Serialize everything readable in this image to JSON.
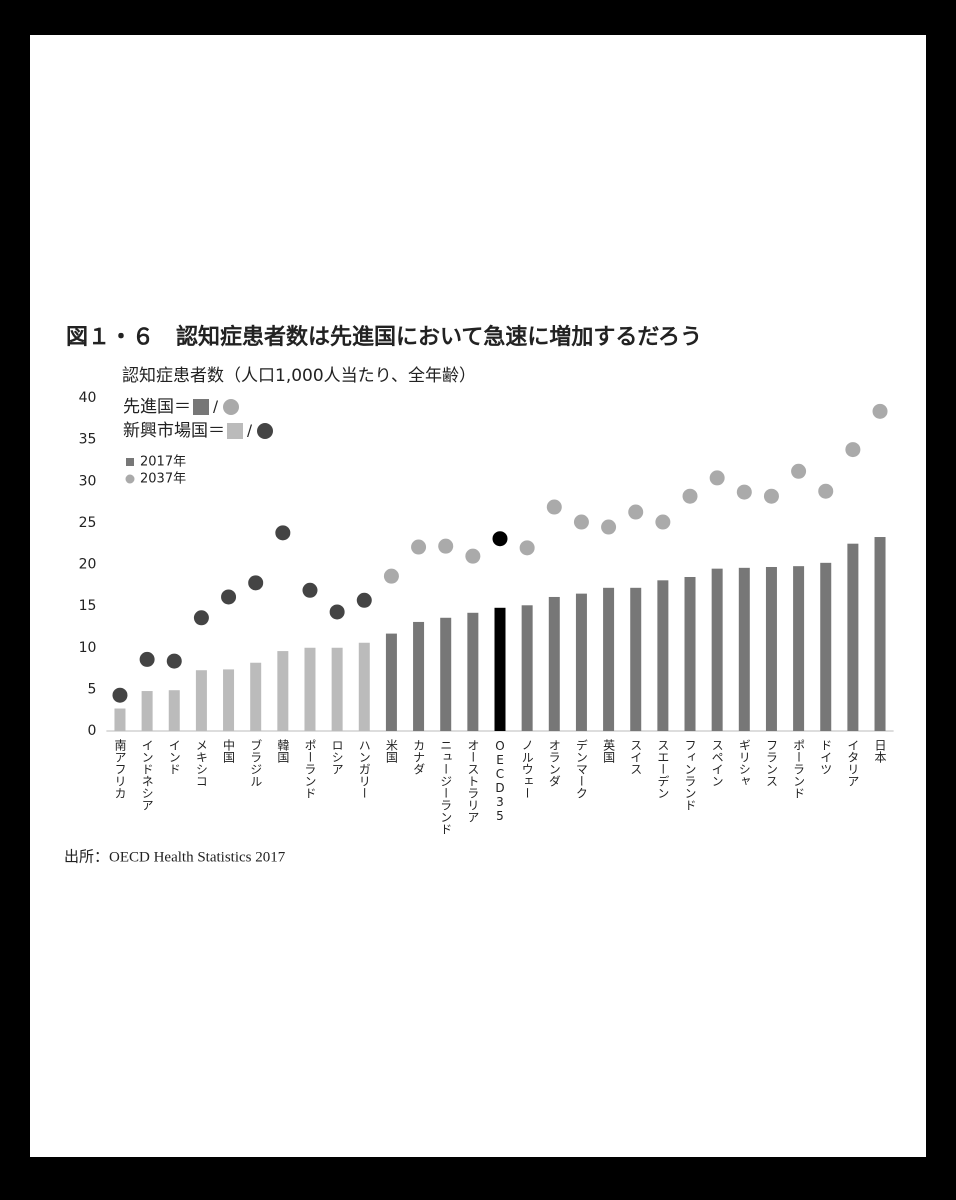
{
  "chart_data": {
    "type": "bar_dot",
    "title": "図１・６　認知症患者数は先進国において急速に増加するだろう",
    "y_label": "認知症患者数（人口1,000人当たり、全年齢）",
    "source": "出所：OECD Health Statistics 2017",
    "legend_groups": [
      {
        "label": "先進国＝",
        "separator": "/",
        "bar_color": "#777777",
        "dot_color": "#aaaaaa"
      },
      {
        "label": "新興市場国＝",
        "separator": "/",
        "bar_color": "#bbbbbb",
        "dot_color": "#444444"
      }
    ],
    "categories": [
      "南アフリカ",
      "インドネシア",
      "インド",
      "メキシコ",
      "中国",
      "ブラジル",
      "韓国",
      "ポーランド",
      "ロシア",
      "ハンガリー",
      "米国",
      "カナダ",
      "ニュージーランド",
      "オーストラリア",
      "OECD35",
      "ノルウェー",
      "オランダ",
      "デンマーク",
      "英国",
      "スイス",
      "スエーデン",
      "フィンランド",
      "スペイン",
      "ギリシャ",
      "フランス",
      "ポーランド",
      "ドイツ",
      "イタリア",
      "日本"
    ],
    "series": [
      {
        "name": "2017年",
        "mark": "bar",
        "color": "#777777",
        "values": [
          2.7,
          4.8,
          4.9,
          7.3,
          7.4,
          8.2,
          9.6,
          10.0,
          10.0,
          10.6,
          11.7,
          13.1,
          13.6,
          14.2,
          14.8,
          15.1,
          16.1,
          16.5,
          17.2,
          17.2,
          18.1,
          18.5,
          19.5,
          19.6,
          19.7,
          19.8,
          20.2,
          22.5,
          23.3
        ],
        "colors": [
          "#bbbbbb",
          "#bbbbbb",
          "#bbbbbb",
          "#bbbbbb",
          "#bbbbbb",
          "#bbbbbb",
          "#bbbbbb",
          "#bbbbbb",
          "#bbbbbb",
          "#bbbbbb",
          "#777777",
          "#777777",
          "#777777",
          "#777777",
          "#000000",
          "#777777",
          "#777777",
          "#777777",
          "#777777",
          "#777777",
          "#777777",
          "#777777",
          "#777777",
          "#777777",
          "#777777",
          "#777777",
          "#777777",
          "#777777",
          "#777777"
        ]
      },
      {
        "name": "2037年",
        "mark": "dot",
        "color": "#aaaaaa",
        "values": [
          4.3,
          8.6,
          8.4,
          13.6,
          16.1,
          17.8,
          23.8,
          16.9,
          14.3,
          15.7,
          18.6,
          22.1,
          22.2,
          21.0,
          23.1,
          22.0,
          26.9,
          25.1,
          24.5,
          26.3,
          25.1,
          28.2,
          30.4,
          28.7,
          28.2,
          31.2,
          28.8,
          33.8,
          38.4
        ],
        "colors": [
          "#444444",
          "#444444",
          "#444444",
          "#444444",
          "#444444",
          "#444444",
          "#444444",
          "#444444",
          "#444444",
          "#444444",
          "#aaaaaa",
          "#aaaaaa",
          "#aaaaaa",
          "#aaaaaa",
          "#000000",
          "#aaaaaa",
          "#aaaaaa",
          "#aaaaaa",
          "#aaaaaa",
          "#aaaaaa",
          "#aaaaaa",
          "#aaaaaa",
          "#aaaaaa",
          "#aaaaaa",
          "#aaaaaa",
          "#aaaaaa",
          "#aaaaaa",
          "#aaaaaa",
          "#aaaaaa"
        ]
      }
    ],
    "ylim": [
      0,
      40
    ],
    "yticks": [
      0,
      5,
      10,
      15,
      20,
      25,
      30,
      35,
      40
    ],
    "grid": false
  }
}
